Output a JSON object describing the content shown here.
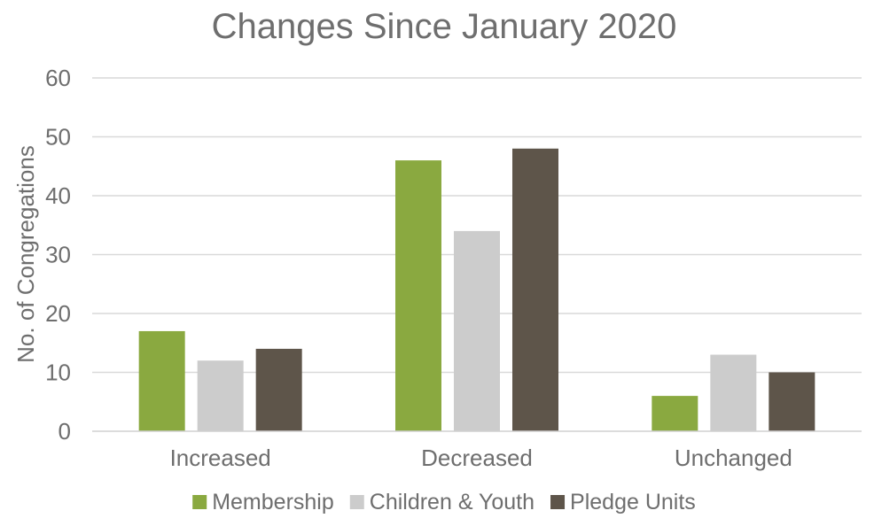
{
  "chart_data": {
    "type": "bar",
    "title": "Changes Since January 2020",
    "xlabel": "",
    "ylabel": "No. of Congregations",
    "ylim": [
      0,
      60
    ],
    "yticks": [
      0,
      10,
      20,
      30,
      40,
      50,
      60
    ],
    "grid": true,
    "legend_position": "bottom",
    "categories": [
      "Increased",
      "Decreased",
      "Unchanged"
    ],
    "series": [
      {
        "name": "Membership",
        "color": "#8aa940",
        "values": [
          17,
          46,
          6
        ]
      },
      {
        "name": "Children & Youth",
        "color": "#cccccc",
        "values": [
          12,
          34,
          13
        ]
      },
      {
        "name": "Pledge Units",
        "color": "#5e554a",
        "values": [
          14,
          48,
          10
        ]
      }
    ]
  }
}
